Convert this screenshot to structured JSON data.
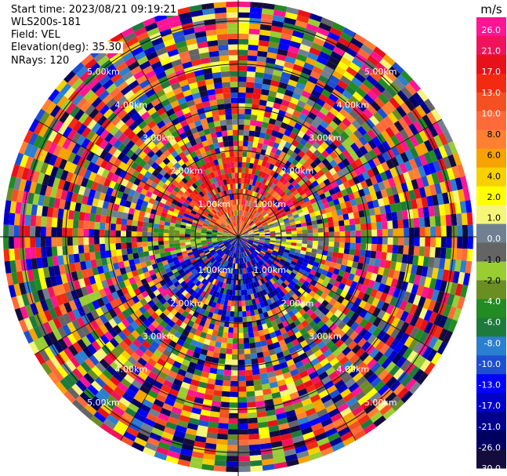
{
  "header": {
    "start_time": "Start time: 2023/08/21 09:19:21",
    "instrument": "WLS200s-181",
    "field": "Field: VEL",
    "elevation": "Elevation(deg): 35.30",
    "nrays": "NRays: 120"
  },
  "chart_data": {
    "type": "heatmap",
    "subtype": "PPI polar scan",
    "field": "VEL",
    "units": "m/s",
    "n_rays": 120,
    "range_rings_km": [
      1.0,
      2.0,
      3.0,
      4.0,
      5.0
    ],
    "range_ring_labels": [
      "1.00km",
      "2.00km",
      "3.00km",
      "4.00km",
      "5.00km"
    ],
    "colorbar": {
      "label": "m/s",
      "ticks": [
        "26.0",
        "21.0",
        "17.0",
        "13.0",
        "10.0",
        "8.0",
        "6.0",
        "4.0",
        "2.0",
        "1.0",
        "0.0",
        "-1.0",
        "-2.0",
        "-4.0",
        "-6.0",
        "-8.0",
        "-10.0",
        "-13.0",
        "-17.0",
        "-21.0",
        "-26.0",
        "-30.0"
      ],
      "colors": [
        "#ff1493",
        "#f0135c",
        "#e8101a",
        "#f22a12",
        "#f55022",
        "#ff6a3a",
        "#ff8030",
        "#f6a200",
        "#f7d000",
        "#ffff00",
        "#f5f57a",
        "#708090",
        "#646464",
        "#9acd32",
        "#6b8e23",
        "#228b22",
        "#1e7a3c",
        "#2a7fd0",
        "#1e4fd2",
        "#0000ff",
        "#0000c8",
        "#00008c",
        "#000060",
        "#140c3c"
      ]
    },
    "grid": "polar rings + radial spokes",
    "pattern_notes": "near range: north sector positive (red/orange), south sector negative (blue), east weak green/yellow; far range noisy"
  }
}
